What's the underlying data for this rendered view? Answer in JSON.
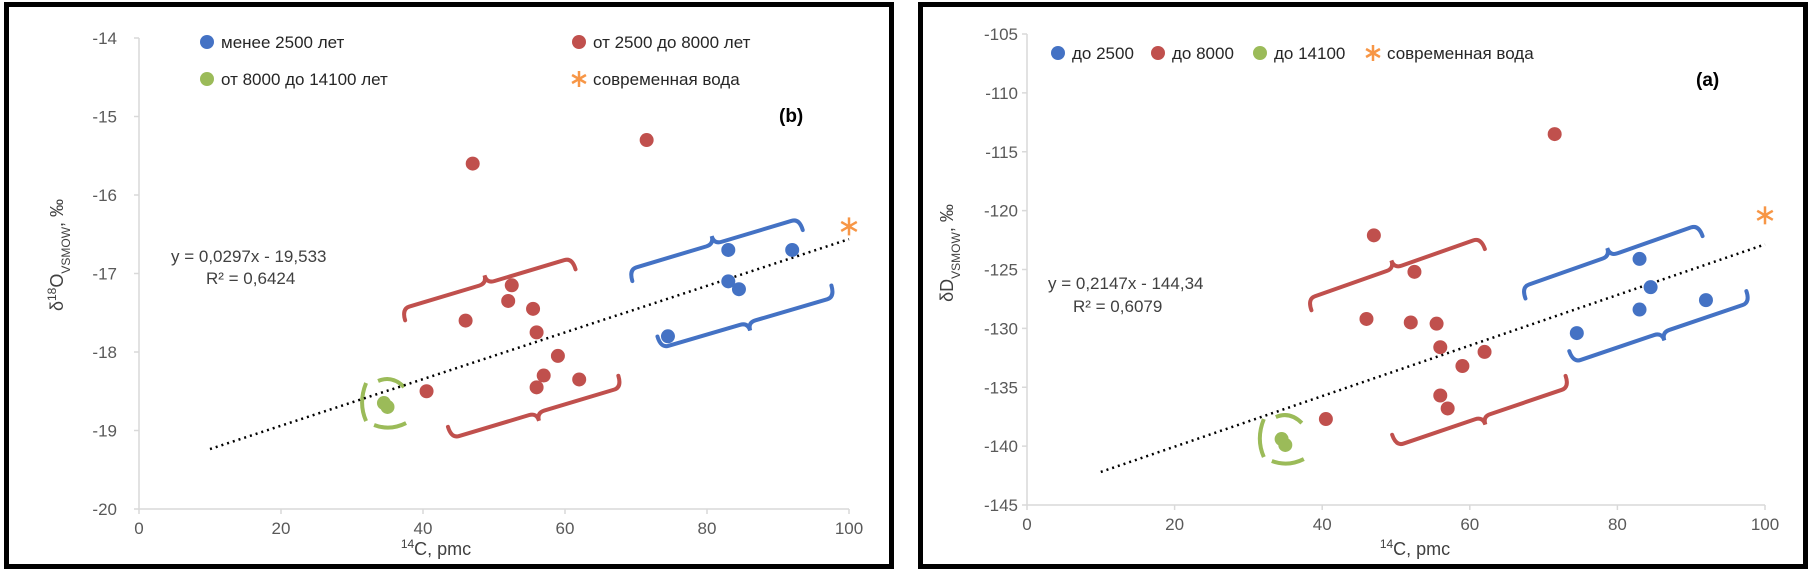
{
  "colors": {
    "blue": "#4472C4",
    "red": "#C0504D",
    "green": "#9BBB59",
    "orange": "#F79646",
    "axis": "#D9D9D9",
    "trend": "#000000"
  },
  "chart_data": [
    {
      "type": "scatter",
      "panel_label": "(b)",
      "xlabel": "14C, pmc",
      "ylabel": "δ18O VSMOW, ‰",
      "xlim": [
        0,
        100
      ],
      "ylim": [
        -20,
        -14
      ],
      "x_ticks": [
        "0",
        "20",
        "40",
        "60",
        "80",
        "100"
      ],
      "y_ticks": [
        "-14",
        "-15",
        "-16",
        "-17",
        "-18",
        "-19",
        "-20"
      ],
      "grid": false,
      "legend_position": "top",
      "series": [
        {
          "name": "менее 2500 лет",
          "color": "#4472C4",
          "marker": "circle",
          "points": [
            [
              83,
              -16.7
            ],
            [
              92,
              -16.7
            ],
            [
              83,
              -17.1
            ],
            [
              84.5,
              -17.2
            ],
            [
              74.5,
              -17.8
            ]
          ]
        },
        {
          "name": "от 2500 до 8000 лет",
          "color": "#C0504D",
          "marker": "circle",
          "points": [
            [
              71.5,
              -15.3
            ],
            [
              47,
              -15.6
            ],
            [
              52.5,
              -17.15
            ],
            [
              52,
              -17.35
            ],
            [
              55.5,
              -17.45
            ],
            [
              46,
              -17.6
            ],
            [
              56,
              -17.75
            ],
            [
              59,
              -18.05
            ],
            [
              62,
              -18.35
            ],
            [
              57,
              -18.3
            ],
            [
              56,
              -18.45
            ],
            [
              40.5,
              -18.5
            ]
          ]
        },
        {
          "name": "от 8000 до 14100 лет",
          "color": "#9BBB59",
          "marker": "circle",
          "points": [
            [
              34.5,
              -18.65
            ],
            [
              35,
              -18.7
            ]
          ]
        },
        {
          "name": "современная вода",
          "color": "#F79646",
          "marker": "asterisk",
          "points": [
            [
              100,
              -16.4
            ]
          ]
        }
      ],
      "trendline": {
        "equation": "y = 0,0297x - 19,533",
        "r2": "R² = 0,6424",
        "slope": 0.0297,
        "intercept": -19.533,
        "x_range": [
          10,
          100
        ]
      }
    },
    {
      "type": "scatter",
      "panel_label": "(a)",
      "xlabel": "14C, pmc",
      "ylabel": "δD VSMOW, ‰",
      "xlim": [
        0,
        100
      ],
      "ylim": [
        -145,
        -105
      ],
      "x_ticks": [
        "0",
        "20",
        "40",
        "60",
        "80",
        "100"
      ],
      "y_ticks": [
        "-105",
        "-110",
        "-115",
        "-120",
        "-125",
        "-130",
        "-135",
        "-140",
        "-145"
      ],
      "grid": false,
      "legend_position": "top",
      "series": [
        {
          "name": "до 2500",
          "color": "#4472C4",
          "marker": "circle",
          "points": [
            [
              83,
              -124.1
            ],
            [
              84.5,
              -126.5
            ],
            [
              92,
              -127.6
            ],
            [
              83,
              -128.4
            ],
            [
              74.5,
              -130.4
            ]
          ]
        },
        {
          "name": "до 8000",
          "color": "#C0504D",
          "marker": "circle",
          "points": [
            [
              71.5,
              -113.5
            ],
            [
              47,
              -122.1
            ],
            [
              52.5,
              -125.2
            ],
            [
              46,
              -129.2
            ],
            [
              52,
              -129.5
            ],
            [
              55.5,
              -129.6
            ],
            [
              56,
              -131.6
            ],
            [
              62,
              -132
            ],
            [
              59,
              -133.2
            ],
            [
              56,
              -135.7
            ],
            [
              57,
              -136.8
            ],
            [
              40.5,
              -137.7
            ]
          ]
        },
        {
          "name": "до 14100",
          "color": "#9BBB59",
          "marker": "circle",
          "points": [
            [
              34.5,
              -139.4
            ],
            [
              35,
              -139.9
            ]
          ]
        },
        {
          "name": "современная вода",
          "color": "#F79646",
          "marker": "asterisk",
          "points": [
            [
              100,
              -120.4
            ]
          ]
        }
      ],
      "trendline": {
        "equation": "y = 0,2147x - 144,34",
        "r2": "R² = 0,6079",
        "slope": 0.2147,
        "intercept": -144.34,
        "x_range": [
          10,
          100
        ]
      }
    }
  ]
}
